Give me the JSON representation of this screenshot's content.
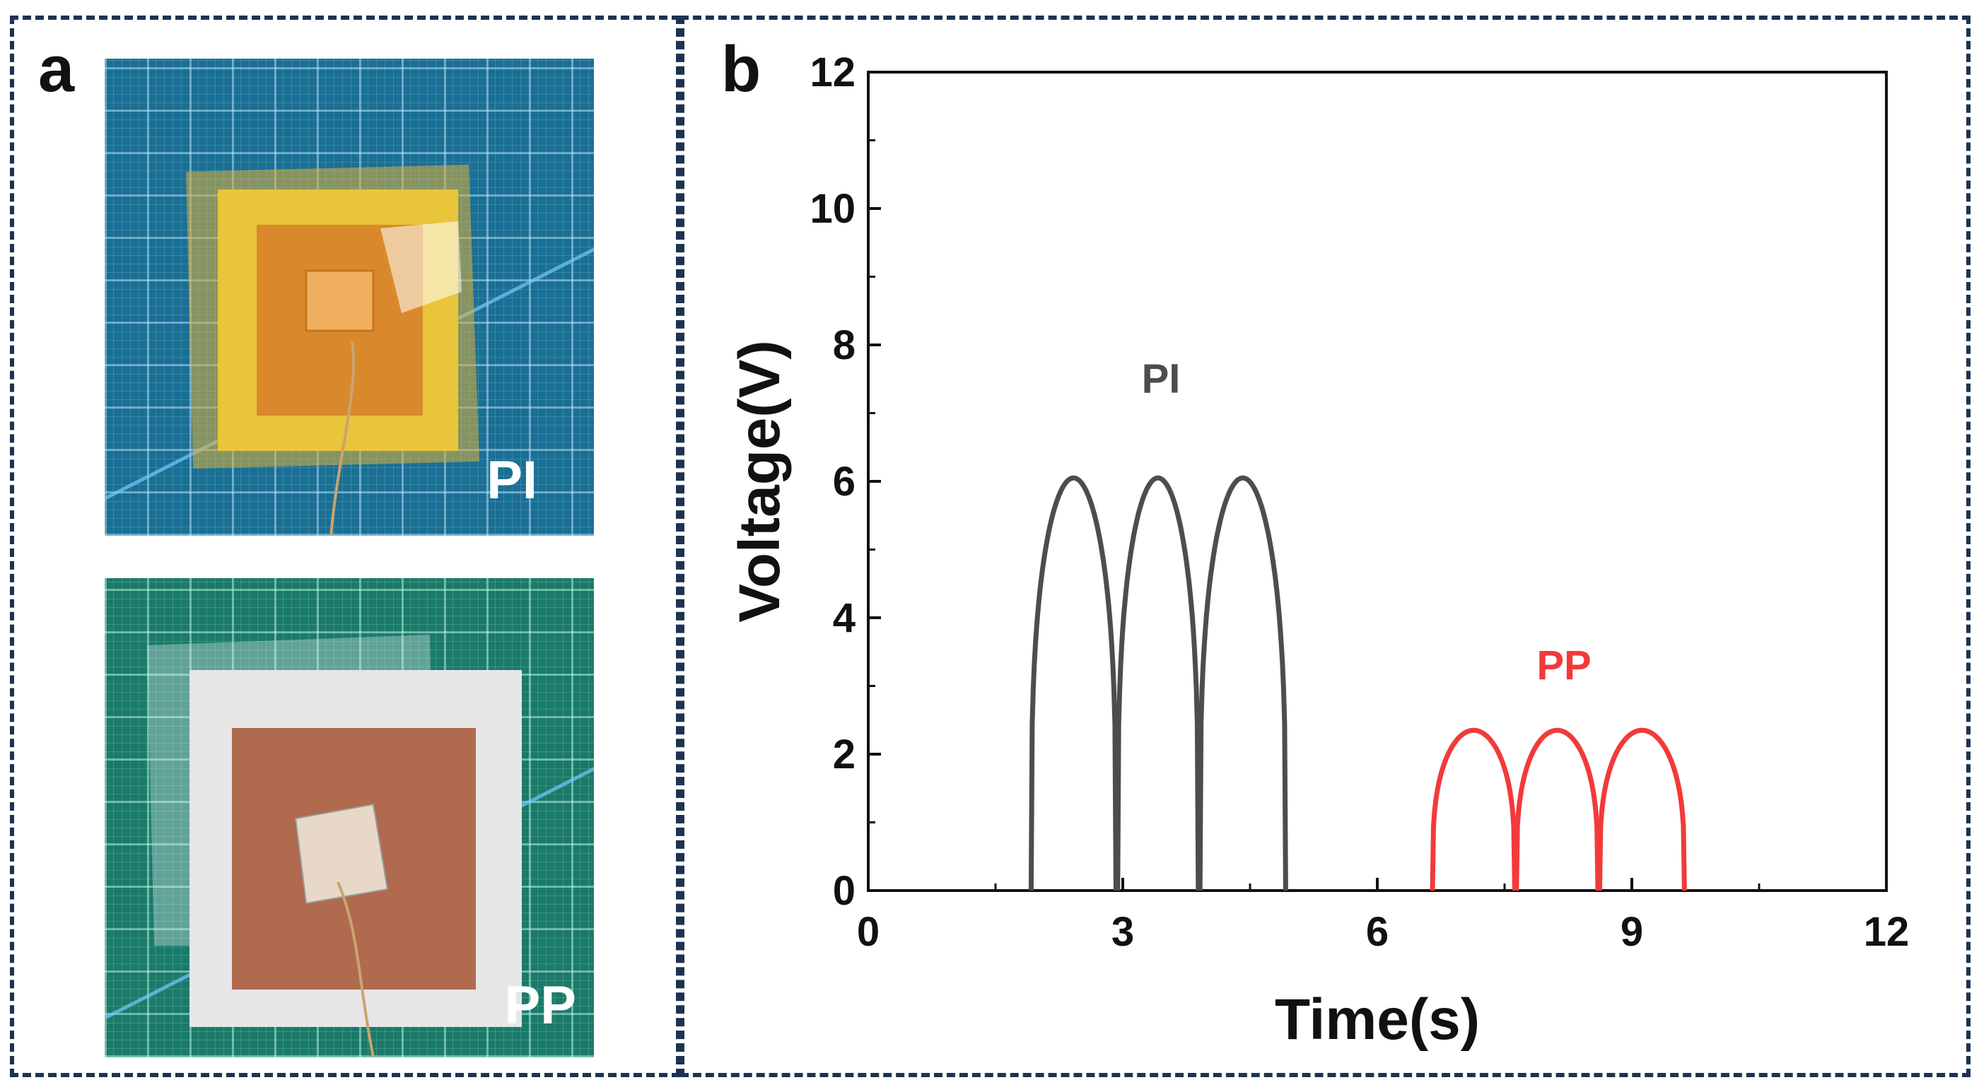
{
  "panel_a": {
    "letter": "a",
    "photos": [
      {
        "label": "PI",
        "board_color": "#1a6f94",
        "frame_color": "#e8c53a",
        "electrode_color": "#d9892c"
      },
      {
        "label": "PP",
        "board_color": "#1b7a6a",
        "frame_color": "#e6e6e6",
        "electrode_color": "#b06a4e"
      }
    ]
  },
  "panel_b": {
    "letter": "b"
  },
  "chart_data": {
    "type": "line",
    "xlabel": "Time(s)",
    "ylabel": "Voltage(V)",
    "xlim": [
      0,
      12
    ],
    "ylim": [
      0,
      12
    ],
    "xticks": [
      0,
      3,
      6,
      9,
      12
    ],
    "yticks": [
      0,
      2,
      4,
      6,
      8,
      10,
      12
    ],
    "xtick_labels": [
      "0",
      "3",
      "6",
      "9",
      "12"
    ],
    "ytick_labels": [
      "0",
      "2",
      "4",
      "6",
      "8",
      "10",
      "12"
    ],
    "grid": false,
    "series": [
      {
        "name": "PI",
        "color": "#4d4d4d",
        "annotation": "PI",
        "pulses": [
          [
            1.92,
            2.92
          ],
          [
            2.94,
            3.89
          ],
          [
            3.91,
            4.92
          ]
        ],
        "peak": 6.05
      },
      {
        "name": "PP",
        "color": "#f23a3a",
        "annotation": "PP",
        "pulses": [
          [
            6.65,
            7.62
          ],
          [
            7.64,
            8.6
          ],
          [
            8.62,
            9.62
          ]
        ],
        "peak": 2.35
      }
    ]
  }
}
